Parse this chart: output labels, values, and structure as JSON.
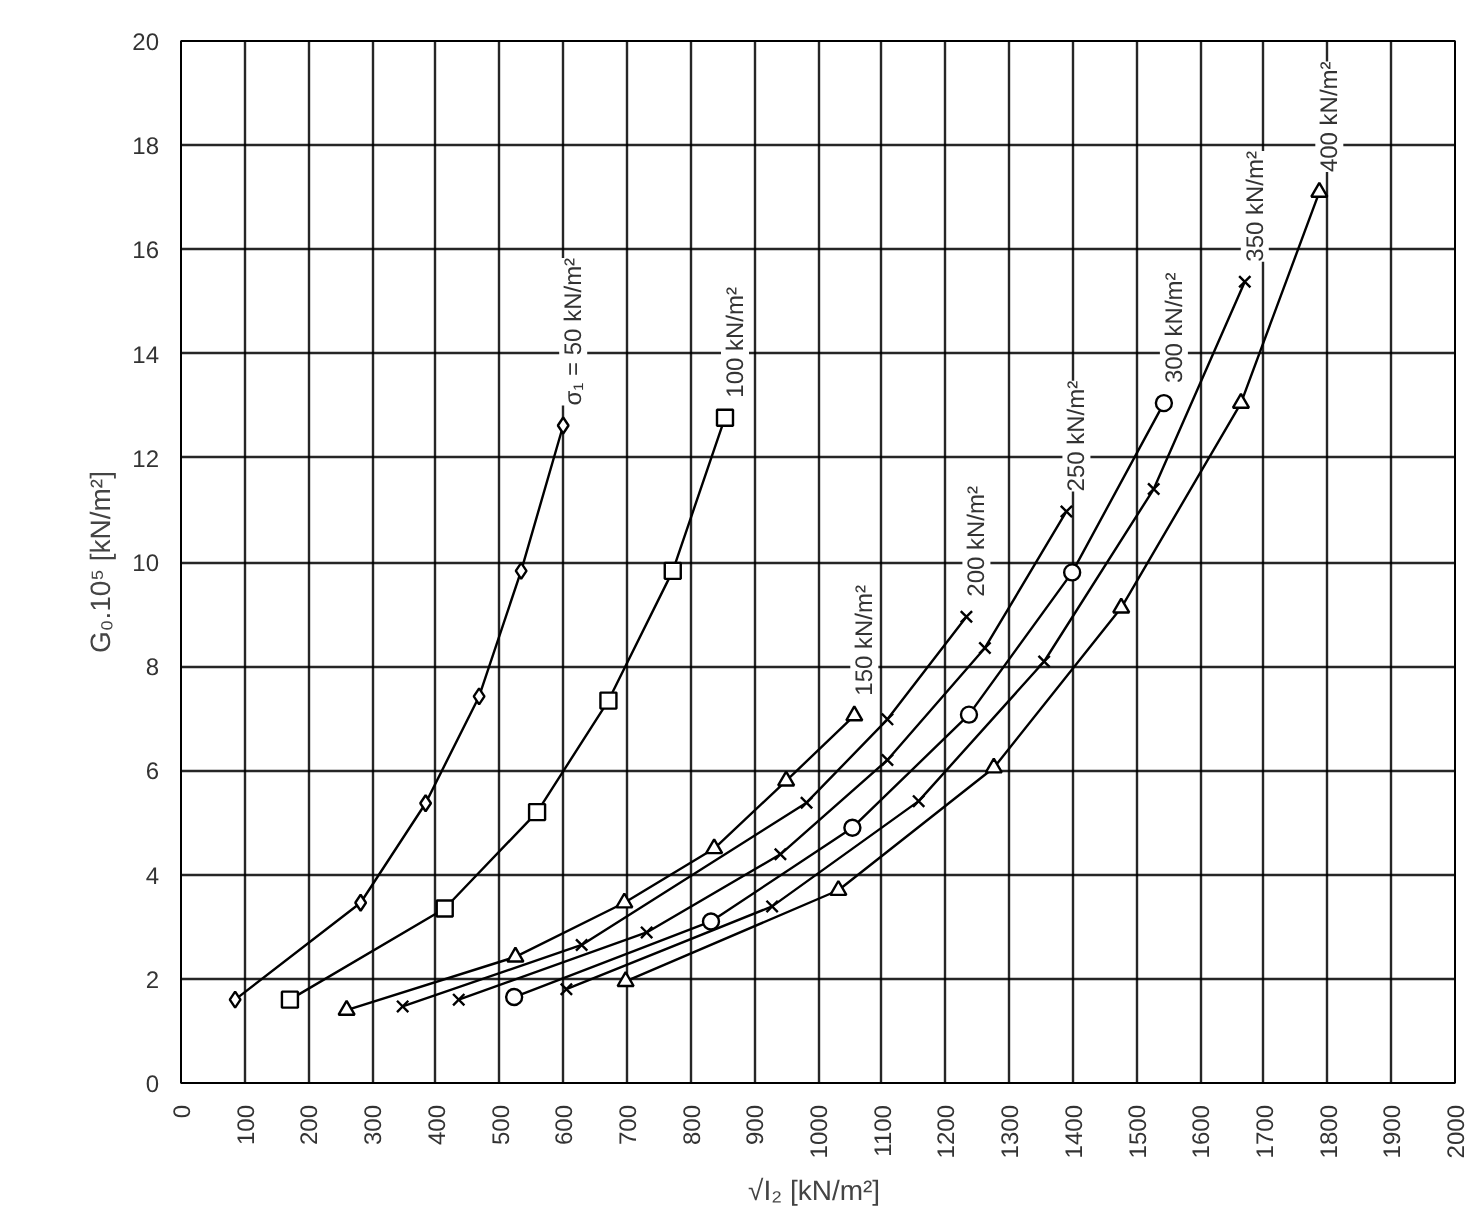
{
  "chart_data": {
    "type": "line",
    "xlabel": "√I₂  [kN/m²]",
    "ylabel": "G₀.10⁵ [kN/m²]",
    "xlim": [
      0,
      2000
    ],
    "xticks": [
      0,
      100,
      200,
      300,
      400,
      500,
      600,
      700,
      800,
      900,
      1000,
      1100,
      1200,
      1300,
      1400,
      1500,
      1600,
      1700,
      1800,
      1900,
      2000
    ],
    "ylim": [
      0,
      20
    ],
    "yticks": [
      0,
      2,
      4,
      6,
      8,
      10,
      12,
      14,
      16,
      18,
      20
    ],
    "grid": true,
    "line_style": "solid",
    "series": [
      {
        "name": "σ₁ = 50 kN/m²",
        "color": "#000000",
        "marker": "diamond",
        "x": [
          85,
          282,
          384,
          468,
          534,
          600
        ],
        "values": [
          1.6,
          3.46,
          5.37,
          7.42,
          9.83,
          12.62
        ]
      },
      {
        "name": "100 kN/m²",
        "color": "#000000",
        "marker": "square",
        "x": [
          171,
          414,
          559,
          671,
          772,
          854
        ],
        "values": [
          1.6,
          3.35,
          5.2,
          7.34,
          9.83,
          12.77
        ]
      },
      {
        "name": "150 kN/m²",
        "color": "#000000",
        "marker": "triangle",
        "x": [
          260,
          525,
          696,
          837,
          950,
          1057
        ],
        "values": [
          1.4,
          2.42,
          3.46,
          4.5,
          5.8,
          7.05
        ]
      },
      {
        "name": "200 kN/m²",
        "color": "#000000",
        "marker": "cross",
        "x": [
          348,
          629,
          982,
          1109,
          1233
        ],
        "values": [
          1.47,
          2.65,
          5.38,
          6.98,
          8.95
        ]
      },
      {
        "name": "250 kN/m²",
        "color": "#000000",
        "marker": "cross",
        "x": [
          436,
          731,
          941,
          1109,
          1262,
          1390
        ],
        "values": [
          1.6,
          2.89,
          4.39,
          6.2,
          8.35,
          10.97
        ]
      },
      {
        "name": "300 kN/m²",
        "color": "#000000",
        "marker": "circle",
        "x": [
          523,
          832,
          1054,
          1237,
          1399,
          1543
        ],
        "values": [
          1.65,
          3.1,
          4.9,
          7.07,
          9.8,
          13.05
        ]
      },
      {
        "name": "350 kN/m²",
        "color": "#000000",
        "marker": "cross",
        "x": [
          605,
          928,
          1158,
          1355,
          1527,
          1670
        ],
        "values": [
          1.8,
          3.39,
          5.41,
          8.09,
          11.4,
          15.38
        ]
      },
      {
        "name": "400 kN/m²",
        "color": "#000000",
        "marker": "triangle",
        "x": [
          698,
          1032,
          1276,
          1476,
          1664,
          1787
        ],
        "values": [
          1.95,
          3.7,
          6.05,
          9.12,
          13.05,
          17.1
        ]
      }
    ]
  }
}
